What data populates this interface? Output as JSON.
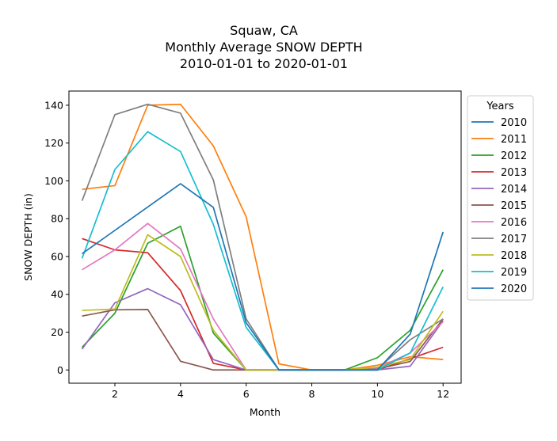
{
  "chart_data": {
    "type": "line",
    "title_lines": [
      "Squaw, CA",
      "Monthly Average SNOW DEPTH",
      "2010-01-01 to 2020-01-01"
    ],
    "xlabel": "Month",
    "ylabel": "SNOW DEPTH (in)",
    "xlim": [
      0.6,
      12.55
    ],
    "ylim": [
      -7,
      147.5
    ],
    "xticks": [
      2,
      4,
      6,
      8,
      10,
      12
    ],
    "yticks": [
      0,
      20,
      40,
      60,
      80,
      100,
      120,
      140
    ],
    "grid": false,
    "legend": {
      "title": "Years",
      "placement": "outside-right"
    },
    "series": [
      {
        "name": "2010",
        "color": "#1f77b4",
        "x": [
          1,
          2,
          3,
          4,
          5,
          6,
          7,
          8,
          9,
          10,
          11,
          12
        ],
        "y": [
          null,
          null,
          null,
          null,
          null,
          null,
          null,
          null,
          null,
          null,
          null,
          null
        ]
      },
      {
        "name": "2011",
        "color": "#ff7f0e",
        "x": [
          1,
          2,
          3,
          4,
          5,
          6,
          7,
          8,
          9,
          10,
          11,
          12
        ],
        "y": [
          95.5,
          97.5,
          140,
          140.5,
          118.5,
          81,
          3.2,
          0,
          0,
          2.5,
          7,
          5.5
        ]
      },
      {
        "name": "2012",
        "color": "#2ca02c",
        "x": [
          1,
          2,
          3,
          4,
          5,
          6,
          7,
          8,
          9,
          10,
          11,
          12
        ],
        "y": [
          12,
          30,
          67,
          76,
          19.5,
          0,
          0,
          0,
          0,
          6.5,
          21,
          53
        ]
      },
      {
        "name": "2013",
        "color": "#d62728",
        "x": [
          1,
          2,
          3,
          4,
          5,
          6,
          7,
          8,
          9,
          10,
          11,
          12
        ],
        "y": [
          69.5,
          63.5,
          62,
          42,
          3.5,
          0,
          0,
          0,
          0,
          0,
          6,
          12
        ]
      },
      {
        "name": "2014",
        "color": "#9467bd",
        "x": [
          1,
          2,
          3,
          4,
          5,
          6,
          7,
          8,
          9,
          10,
          11,
          12
        ],
        "y": [
          11,
          35.5,
          43,
          34.5,
          5.5,
          0,
          0,
          0,
          0,
          0,
          2,
          26
        ]
      },
      {
        "name": "2015",
        "color": "#8c564b",
        "x": [
          1,
          2,
          3,
          4,
          5,
          6,
          7,
          8,
          9,
          10,
          11,
          12
        ],
        "y": [
          28.5,
          31.8,
          32,
          4.6,
          0,
          0,
          0,
          0,
          0,
          0.5,
          4.5,
          27
        ]
      },
      {
        "name": "2016",
        "color": "#e377c2",
        "x": [
          1,
          2,
          3,
          4,
          5,
          6,
          7,
          8,
          9,
          10,
          11,
          12
        ],
        "y": [
          53,
          63.5,
          77.5,
          64,
          27,
          0,
          0,
          0,
          0,
          1,
          9,
          25.5
        ]
      },
      {
        "name": "2017",
        "color": "#7f7f7f",
        "x": [
          1,
          2,
          3,
          4,
          5,
          6,
          7,
          8,
          9,
          10,
          11,
          12
        ],
        "y": [
          89.5,
          135,
          140.5,
          135.8,
          100.5,
          27,
          0,
          0,
          0,
          0.5,
          16,
          27
        ]
      },
      {
        "name": "2018",
        "color": "#bcbd22",
        "x": [
          1,
          2,
          3,
          4,
          5,
          6,
          7,
          8,
          9,
          10,
          11,
          12
        ],
        "y": [
          31.5,
          32.2,
          71.5,
          60,
          21,
          0,
          0,
          0,
          0,
          1.5,
          5.5,
          31
        ]
      },
      {
        "name": "2019",
        "color": "#17becf",
        "x": [
          1,
          2,
          3,
          4,
          5,
          6,
          7,
          8,
          9,
          10,
          11,
          12
        ],
        "y": [
          59,
          106,
          126,
          115.5,
          77,
          22.5,
          0,
          0,
          0,
          0,
          9,
          44
        ]
      },
      {
        "name": "2020",
        "color": "#1f77b4",
        "x": [
          1,
          4,
          5,
          6,
          7,
          8,
          9,
          10,
          11,
          12
        ],
        "y": [
          61.5,
          98.5,
          86,
          25,
          0,
          0,
          0,
          0,
          19,
          73
        ]
      }
    ]
  }
}
